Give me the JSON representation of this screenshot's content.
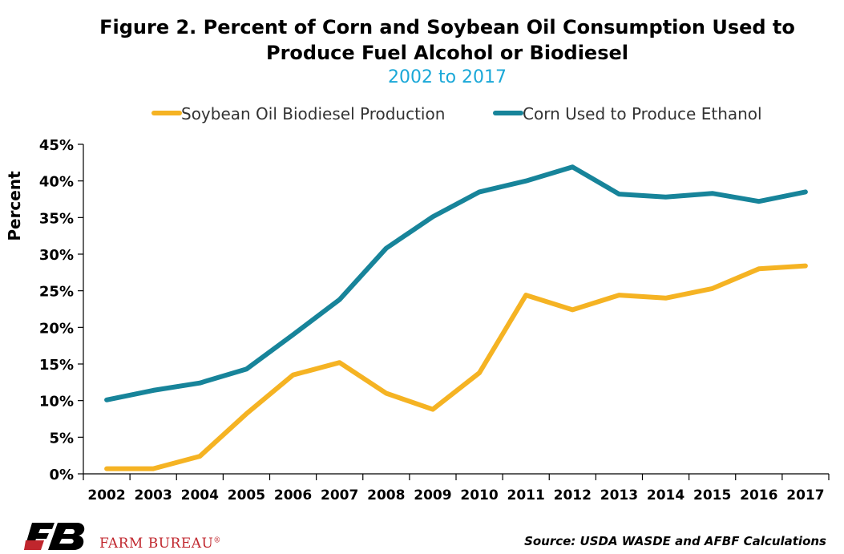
{
  "header": {
    "title_line1": "Figure 2. Percent of Corn and Soybean Oil Consumption Used to",
    "title_line2": "Produce Fuel Alcohol or Biodiesel",
    "subtitle": "2002 to 2017"
  },
  "footer": {
    "brand": "FARM BUREAU",
    "brand_mark": "®",
    "source": "Source: USDA WASDE and AFBF Calculations"
  },
  "colors": {
    "soybean": "#f5b323",
    "corn": "#17849a",
    "subtitle": "#1aa8d8",
    "brand": "#c0262d"
  },
  "chart_data": {
    "type": "line",
    "title": "Figure 2. Percent of Corn and Soybean Oil Consumption Used to Produce Fuel Alcohol or Biodiesel",
    "subtitle": "2002 to 2017",
    "xlabel": "",
    "ylabel": "Percent",
    "categories": [
      "2002",
      "2003",
      "2004",
      "2005",
      "2006",
      "2007",
      "2008",
      "2009",
      "2010",
      "2011",
      "2012",
      "2013",
      "2014",
      "2015",
      "2016",
      "2017"
    ],
    "yticks": [
      "0%",
      "5%",
      "10%",
      "15%",
      "20%",
      "25%",
      "30%",
      "35%",
      "40%",
      "45%"
    ],
    "ylim": [
      0,
      45
    ],
    "grid": false,
    "legend_position": "top",
    "series": [
      {
        "name": "Soybean Oil Biodiesel Production",
        "color": "#f5b323",
        "values": [
          0.7,
          0.7,
          2.4,
          8.2,
          13.5,
          15.2,
          11.0,
          8.8,
          13.8,
          24.4,
          22.4,
          24.4,
          24.0,
          25.3,
          28.0,
          28.4
        ]
      },
      {
        "name": "Corn Used to Produce Ethanol",
        "color": "#17849a",
        "values": [
          10.1,
          11.4,
          12.4,
          14.3,
          19.0,
          23.8,
          30.8,
          35.1,
          38.5,
          40.0,
          41.9,
          38.2,
          37.8,
          38.3,
          37.2,
          38.5
        ]
      }
    ]
  }
}
